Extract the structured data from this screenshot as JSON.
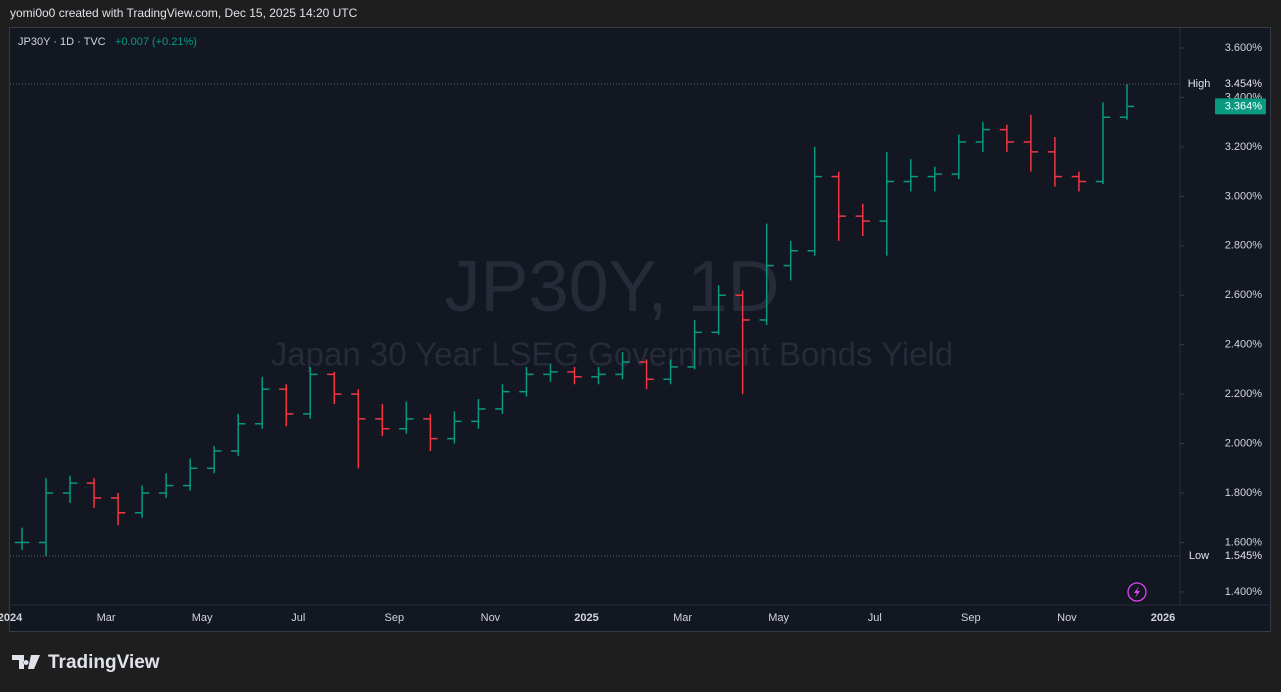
{
  "header": {
    "credit": "yomi0o0 created with TradingView.com, Dec 15, 2025 14:20 UTC",
    "symbol": "JP30Y · 1D · TVC",
    "change": "+0.007 (+0.21%)"
  },
  "brand": "TradingView",
  "chart_data": {
    "type": "ohlc",
    "watermark": "JP30Y, 1D",
    "title": "Japan 30 Year LSEG Government Bonds Yield",
    "categories": [
      "2024",
      null,
      null,
      null,
      "Mar",
      null,
      null,
      null,
      "May",
      null,
      null,
      null,
      "Jul",
      null,
      null,
      null,
      "Sep",
      null,
      null,
      null,
      "Nov",
      null,
      null,
      null,
      "2025",
      null,
      null,
      null,
      "Mar",
      null,
      null,
      null,
      "May",
      null,
      null,
      null,
      "Jul",
      null,
      null,
      null,
      "Sep",
      null,
      null,
      null,
      "Nov",
      null,
      null,
      null,
      "2026"
    ],
    "open": [
      1.6,
      1.6,
      1.8,
      1.84,
      1.78,
      1.72,
      1.8,
      1.83,
      1.9,
      1.97,
      2.08,
      2.22,
      2.12,
      2.28,
      2.2,
      2.1,
      2.06,
      2.1,
      2.02,
      2.09,
      2.14,
      2.21,
      2.28,
      2.29,
      2.27,
      2.28,
      2.33,
      2.26,
      2.31,
      2.45,
      2.6,
      2.5,
      2.72,
      2.78,
      3.08,
      2.92,
      2.9,
      3.06,
      3.08,
      3.09,
      3.22,
      3.27,
      3.22,
      3.18,
      3.08,
      3.06,
      3.32,
      null,
      null
    ],
    "high": [
      1.66,
      1.86,
      1.87,
      1.86,
      1.8,
      1.83,
      1.88,
      1.94,
      1.99,
      2.12,
      2.27,
      2.24,
      2.31,
      2.29,
      2.22,
      2.16,
      2.17,
      2.12,
      2.13,
      2.18,
      2.24,
      2.31,
      2.32,
      2.31,
      2.31,
      2.37,
      2.34,
      2.34,
      2.5,
      2.64,
      2.62,
      2.89,
      2.82,
      3.2,
      3.1,
      2.97,
      3.18,
      3.15,
      3.12,
      3.25,
      3.3,
      3.29,
      3.33,
      3.24,
      3.1,
      3.38,
      3.454,
      null,
      null
    ],
    "low": [
      1.57,
      1.545,
      1.76,
      1.74,
      1.67,
      1.7,
      1.78,
      1.81,
      1.88,
      1.95,
      2.06,
      2.07,
      2.1,
      2.16,
      1.9,
      2.03,
      2.04,
      1.97,
      2.0,
      2.06,
      2.12,
      2.19,
      2.25,
      2.24,
      2.24,
      2.26,
      2.22,
      2.24,
      2.3,
      2.44,
      2.2,
      2.48,
      2.66,
      2.76,
      2.82,
      2.84,
      2.76,
      3.02,
      3.02,
      3.07,
      3.18,
      3.18,
      3.1,
      3.04,
      3.02,
      3.05,
      3.31,
      null,
      null
    ],
    "close": [
      1.6,
      1.8,
      1.84,
      1.78,
      1.72,
      1.8,
      1.83,
      1.9,
      1.97,
      2.08,
      2.22,
      2.12,
      2.28,
      2.2,
      2.1,
      2.06,
      2.1,
      2.02,
      2.09,
      2.14,
      2.21,
      2.28,
      2.29,
      2.27,
      2.28,
      2.33,
      2.26,
      2.31,
      2.45,
      2.6,
      2.5,
      2.72,
      2.78,
      3.08,
      2.92,
      2.9,
      3.06,
      3.08,
      3.09,
      3.22,
      3.27,
      3.22,
      3.18,
      3.08,
      3.06,
      3.32,
      3.364,
      null,
      null
    ],
    "up_color": "#089981",
    "down_color": "#f23645",
    "ylim": [
      1.347,
      3.681
    ],
    "yticks": [
      {
        "value": 1.4,
        "label": "1.400%"
      },
      {
        "value": 1.6,
        "label": "1.600%"
      },
      {
        "value": 1.8,
        "label": "1.800%"
      },
      {
        "value": 2.0,
        "label": "2.000%"
      },
      {
        "value": 2.2,
        "label": "2.200%"
      },
      {
        "value": 2.4,
        "label": "2.400%"
      },
      {
        "value": 2.6,
        "label": "2.600%"
      },
      {
        "value": 2.8,
        "label": "2.800%"
      },
      {
        "value": 3.0,
        "label": "3.000%"
      },
      {
        "value": 3.2,
        "label": "3.200%"
      },
      {
        "value": 3.4,
        "label": "3.400%"
      },
      {
        "value": 3.6,
        "label": "3.600%"
      }
    ],
    "grid": false,
    "high_marker": {
      "label": "High",
      "value": 3.454,
      "value_label": "3.454%"
    },
    "low_marker": {
      "label": "Low",
      "value": 1.545,
      "value_label": "1.545%"
    },
    "last_price": {
      "value": 3.364,
      "value_label": "3.364%"
    }
  }
}
